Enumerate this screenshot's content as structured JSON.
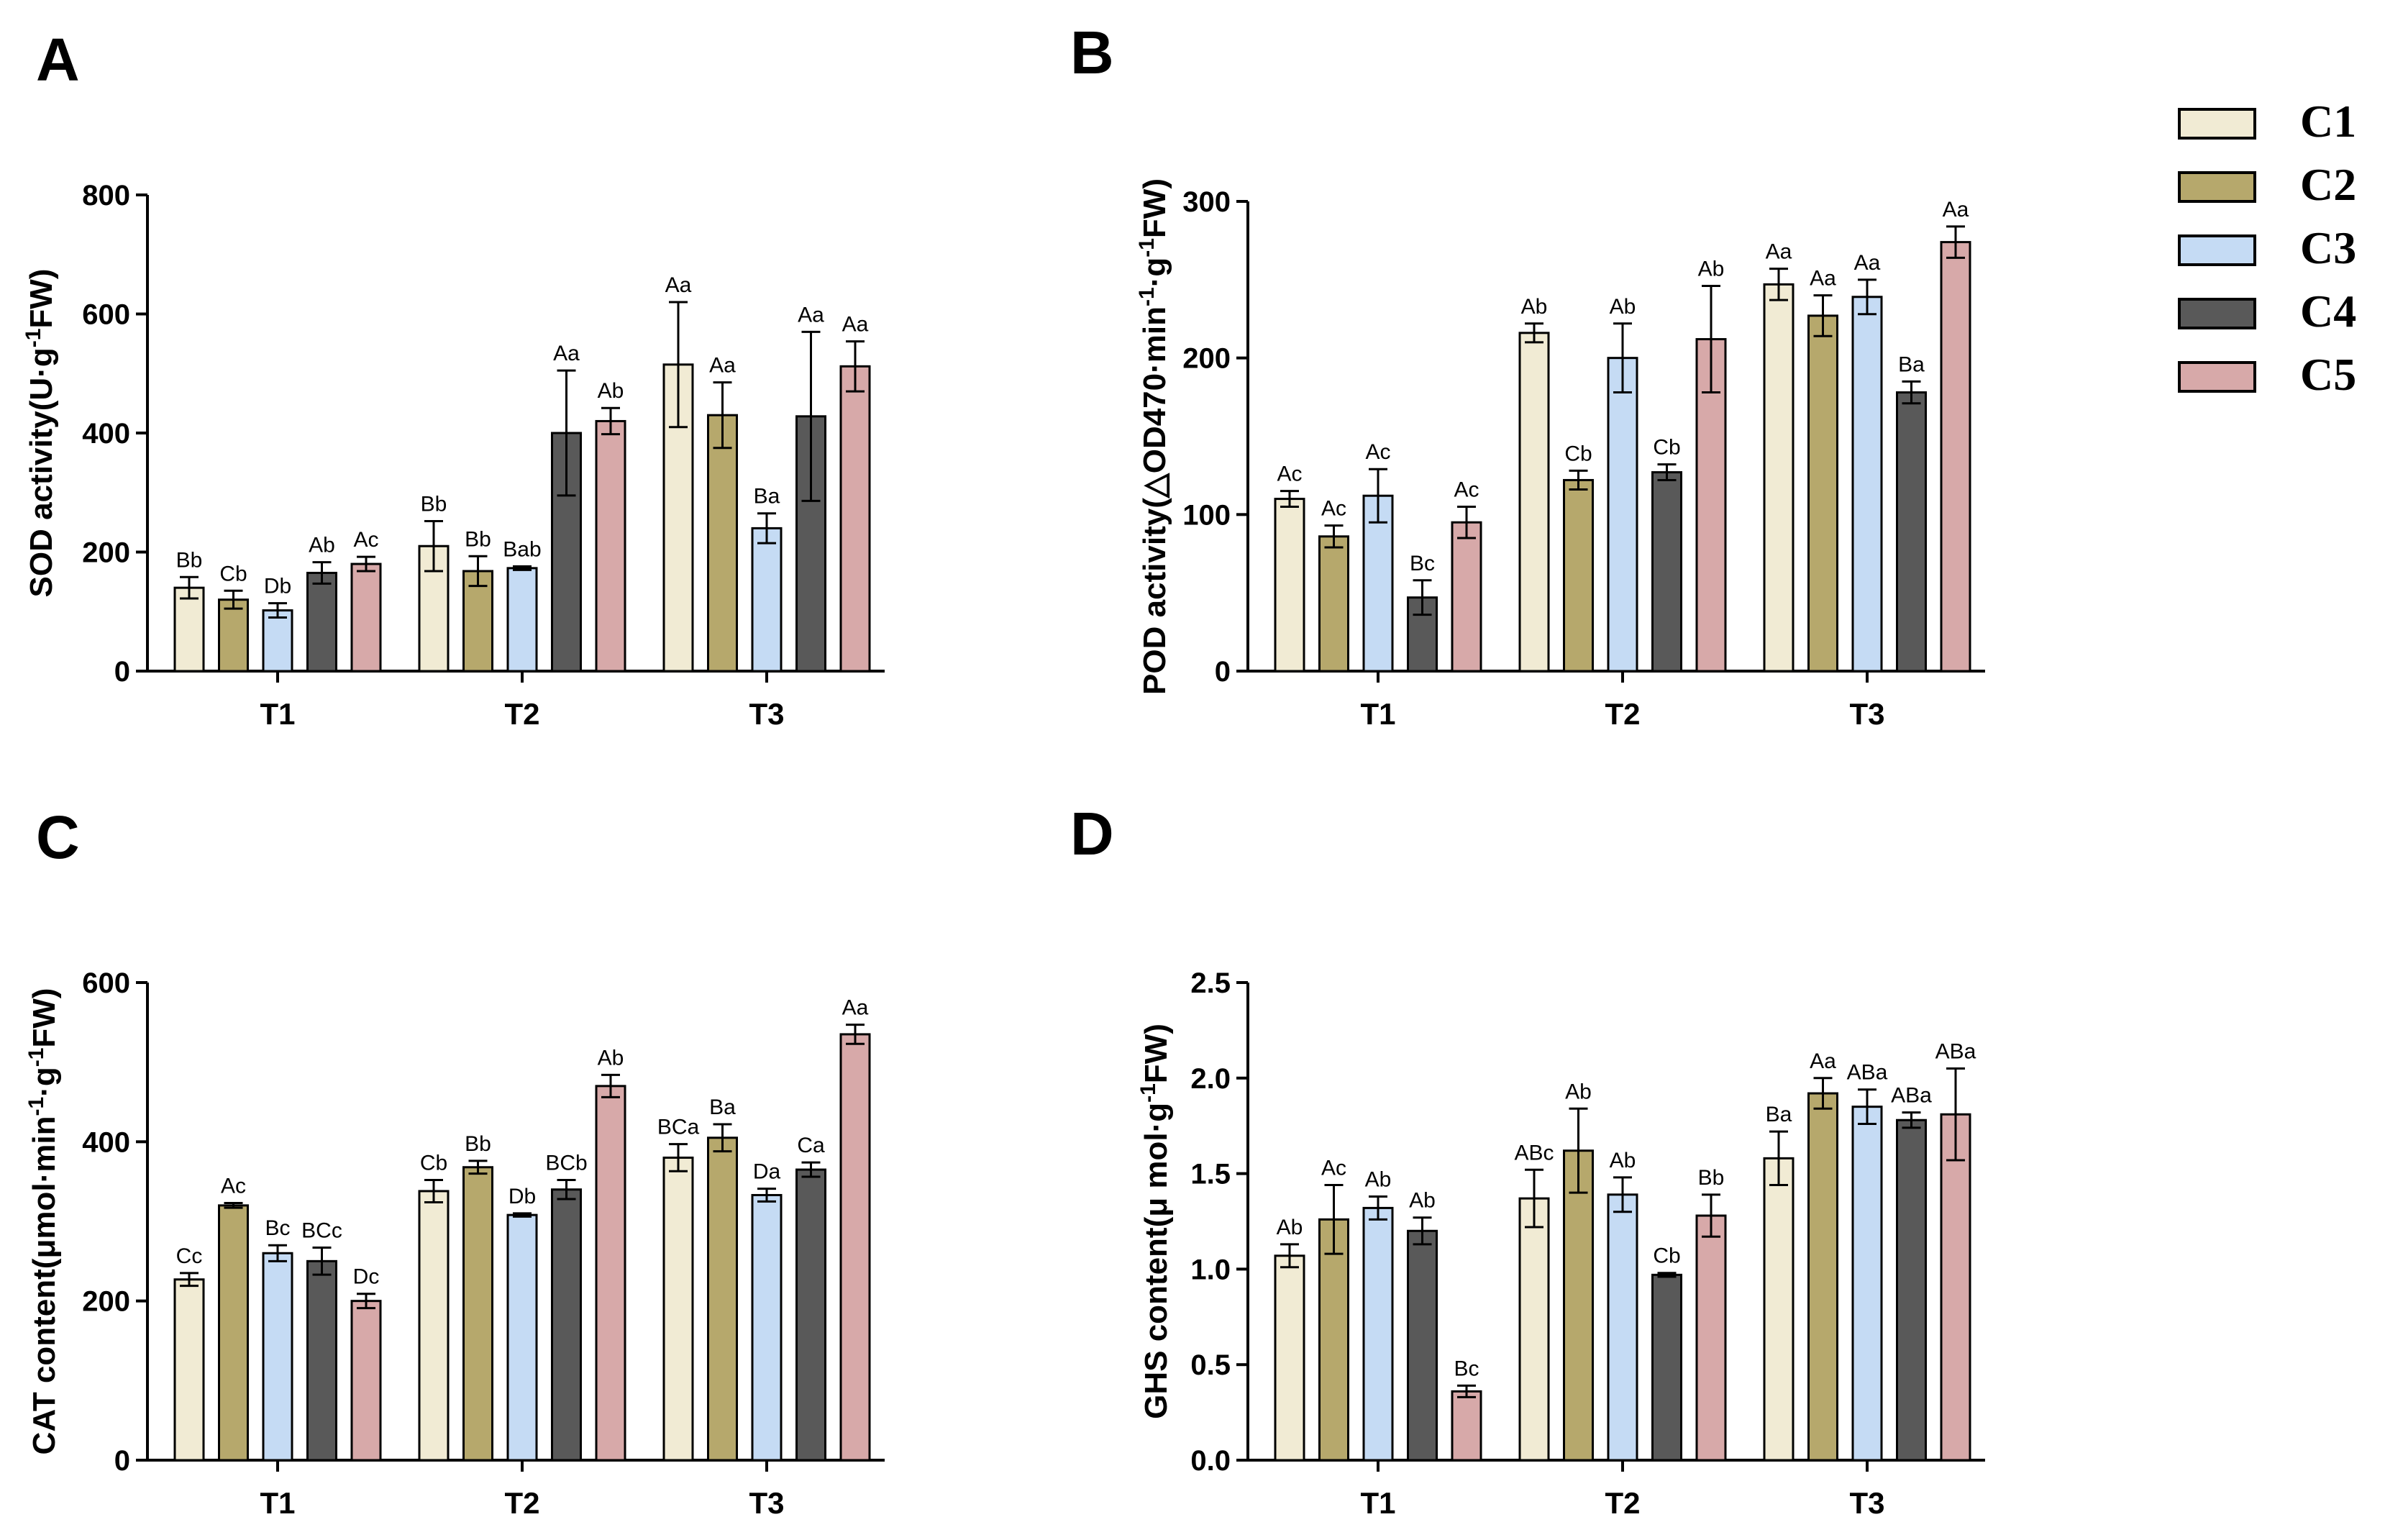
{
  "series_colors": {
    "C1": "#f1ebd4",
    "C2": "#b6a86c",
    "C3": "#c5dbf4",
    "C4": "#595959",
    "C5": "#d7a9a9"
  },
  "legend": [
    "C1",
    "C2",
    "C3",
    "C4",
    "C5"
  ],
  "chart_data": [
    {
      "panel": "A",
      "type": "bar",
      "categories": [
        "T1",
        "T2",
        "T3"
      ],
      "ylabel_main": "SOD activity(U·g",
      "ylabel_sup": "-1",
      "ylabel_tail": "FW)",
      "ylim": [
        0,
        800
      ],
      "yticks": [
        0,
        200,
        400,
        600,
        800
      ],
      "ytick_labels": [
        "0",
        "200",
        "400",
        "600",
        "800"
      ],
      "series": [
        {
          "name": "C1",
          "values": [
            140,
            210,
            515
          ],
          "errors": [
            18,
            42,
            105
          ],
          "labels": [
            "Bb",
            "Bb",
            "Aa"
          ]
        },
        {
          "name": "C2",
          "values": [
            120,
            168,
            430
          ],
          "errors": [
            15,
            25,
            55
          ],
          "labels": [
            "Cb",
            "Bb",
            "Aa"
          ]
        },
        {
          "name": "C3",
          "values": [
            102,
            173,
            240
          ],
          "errors": [
            12,
            3,
            25
          ],
          "labels": [
            "Db",
            "Bab",
            "Ba"
          ]
        },
        {
          "name": "C4",
          "values": [
            165,
            400,
            428
          ],
          "errors": [
            18,
            105,
            142
          ],
          "labels": [
            "Ab",
            "Aa",
            "Aa"
          ]
        },
        {
          "name": "C5",
          "values": [
            180,
            420,
            512
          ],
          "errors": [
            12,
            22,
            42
          ],
          "labels": [
            "Ac",
            "Ab",
            "Aa"
          ]
        }
      ]
    },
    {
      "panel": "B",
      "type": "bar",
      "categories": [
        "T1",
        "T2",
        "T3"
      ],
      "ylabel_main": "POD activity(△OD470·min",
      "ylabel_sup": "-1",
      "ylabel_mid": "·g",
      "ylabel_sup2": "-1",
      "ylabel_tail": "FW)",
      "ylim": [
        0,
        300
      ],
      "yticks": [
        0,
        100,
        200,
        300
      ],
      "ytick_labels": [
        "0",
        "100",
        "200",
        "300"
      ],
      "series": [
        {
          "name": "C1",
          "values": [
            110,
            216,
            247
          ],
          "errors": [
            5,
            6,
            10
          ],
          "labels": [
            "Ac",
            "Ab",
            "Aa"
          ]
        },
        {
          "name": "C2",
          "values": [
            86,
            122,
            227
          ],
          "errors": [
            7,
            6,
            13
          ],
          "labels": [
            "Ac",
            "Cb",
            "Aa"
          ]
        },
        {
          "name": "C3",
          "values": [
            112,
            200,
            239
          ],
          "errors": [
            17,
            22,
            11
          ],
          "labels": [
            "Ac",
            "Ab",
            "Aa"
          ]
        },
        {
          "name": "C4",
          "values": [
            47,
            127,
            178
          ],
          "errors": [
            11,
            5,
            7
          ],
          "labels": [
            "Bc",
            "Cb",
            "Ba"
          ]
        },
        {
          "name": "C5",
          "values": [
            95,
            212,
            274
          ],
          "errors": [
            10,
            34,
            10
          ],
          "labels": [
            "Ac",
            "Ab",
            "Aa"
          ]
        }
      ]
    },
    {
      "panel": "C",
      "type": "bar",
      "categories": [
        "T1",
        "T2",
        "T3"
      ],
      "ylabel_main": "CAT content(μmol·min",
      "ylabel_sup": "-1",
      "ylabel_mid": "·g",
      "ylabel_sup2": "-1",
      "ylabel_tail": "FW)",
      "ylim": [
        0,
        600
      ],
      "yticks": [
        0,
        200,
        400,
        600
      ],
      "ytick_labels": [
        "0",
        "200",
        "400",
        "600"
      ],
      "series": [
        {
          "name": "C1",
          "values": [
            227,
            338,
            380
          ],
          "errors": [
            8,
            14,
            17
          ],
          "labels": [
            "Cc",
            "Cb",
            "BCa"
          ]
        },
        {
          "name": "C2",
          "values": [
            320,
            368,
            405
          ],
          "errors": [
            3,
            8,
            17
          ],
          "labels": [
            "Ac",
            "Bb",
            "Ba"
          ]
        },
        {
          "name": "C3",
          "values": [
            260,
            308,
            333
          ],
          "errors": [
            10,
            2,
            8
          ],
          "labels": [
            "Bc",
            "Db",
            "Da"
          ]
        },
        {
          "name": "C4",
          "values": [
            250,
            340,
            365
          ],
          "errors": [
            17,
            12,
            9
          ],
          "labels": [
            "BCc",
            "BCb",
            "Ca"
          ]
        },
        {
          "name": "C5",
          "values": [
            200,
            470,
            535
          ],
          "errors": [
            9,
            14,
            12
          ],
          "labels": [
            "Dc",
            "Ab",
            "Aa"
          ]
        }
      ]
    },
    {
      "panel": "D",
      "type": "bar",
      "categories": [
        "T1",
        "T2",
        "T3"
      ],
      "ylabel_main": "GHS content(μ mol·g",
      "ylabel_sup": "-1",
      "ylabel_tail": "FW)",
      "ylim": [
        0,
        2.5
      ],
      "yticks": [
        0,
        0.5,
        1.0,
        1.5,
        2.0,
        2.5
      ],
      "ytick_labels": [
        "0.0",
        "0.5",
        "1.0",
        "1.5",
        "2.0",
        "2.5"
      ],
      "series": [
        {
          "name": "C1",
          "values": [
            1.07,
            1.37,
            1.58
          ],
          "errors": [
            0.06,
            0.15,
            0.14
          ],
          "labels": [
            "Ab",
            "ABc",
            "Ba"
          ]
        },
        {
          "name": "C2",
          "values": [
            1.26,
            1.62,
            1.92
          ],
          "errors": [
            0.18,
            0.22,
            0.08
          ],
          "labels": [
            "Ac",
            "Ab",
            "Aa"
          ]
        },
        {
          "name": "C3",
          "values": [
            1.32,
            1.39,
            1.85
          ],
          "errors": [
            0.06,
            0.09,
            0.09
          ],
          "labels": [
            "Ab",
            "Ab",
            "ABa"
          ]
        },
        {
          "name": "C4",
          "values": [
            1.2,
            0.97,
            1.78
          ],
          "errors": [
            0.07,
            0.01,
            0.04
          ],
          "labels": [
            "Ab",
            "Cb",
            "ABa"
          ]
        },
        {
          "name": "C5",
          "values": [
            0.36,
            1.28,
            1.81
          ],
          "errors": [
            0.03,
            0.11,
            0.24
          ],
          "labels": [
            "Bc",
            "Bb",
            "ABa"
          ]
        }
      ]
    }
  ]
}
